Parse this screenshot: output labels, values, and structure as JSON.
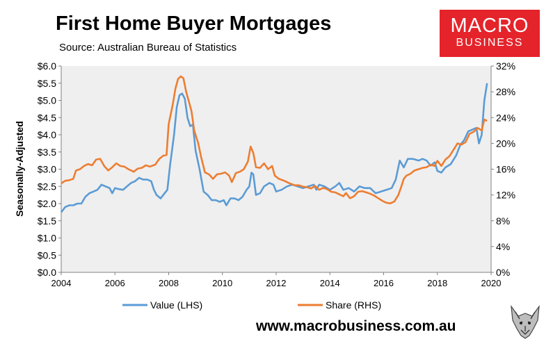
{
  "header": {
    "title": "First Home Buyer Mortgages",
    "source": "Source: Australian Bureau of Statistics"
  },
  "logo": {
    "line1": "MACRO",
    "line2": "BUSINESS",
    "bg_color": "#e5232a"
  },
  "footer": {
    "url": "www.macrobusiness.com.au"
  },
  "mascot": {
    "icon": "wolf-head-icon"
  },
  "chart_data": {
    "type": "line",
    "ylabel": "Seasonally-Adjusted",
    "x_ticks": [
      "2004",
      "2006",
      "2008",
      "2010",
      "2012",
      "2014",
      "2016",
      "2018",
      "2020"
    ],
    "y_left_ticks": [
      "$0.0",
      "$0.5",
      "$1.0",
      "$1.5",
      "$2.0",
      "$2.5",
      "$3.0",
      "$3.5",
      "$4.0",
      "$4.5",
      "$5.0",
      "$5.5",
      "$6.0"
    ],
    "y_right_ticks": [
      "0%",
      "4%",
      "8%",
      "12%",
      "16%",
      "20%",
      "24%",
      "28%",
      "32%"
    ],
    "ylim_left": [
      0,
      6
    ],
    "ylim_right": [
      0,
      32
    ],
    "xlim": [
      2004,
      2020
    ],
    "grid": false,
    "legend_position": "bottom",
    "background": "#efefef",
    "series": [
      {
        "name": "Value (LHS)",
        "axis": "left",
        "color": "#5b9bd5",
        "points": [
          [
            2004.0,
            1.75
          ],
          [
            2004.15,
            1.9
          ],
          [
            2004.3,
            1.95
          ],
          [
            2004.45,
            1.95
          ],
          [
            2004.6,
            2.0
          ],
          [
            2004.75,
            2.0
          ],
          [
            2004.9,
            2.2
          ],
          [
            2005.05,
            2.3
          ],
          [
            2005.2,
            2.35
          ],
          [
            2005.35,
            2.4
          ],
          [
            2005.5,
            2.55
          ],
          [
            2005.65,
            2.5
          ],
          [
            2005.8,
            2.45
          ],
          [
            2005.9,
            2.3
          ],
          [
            2006.0,
            2.45
          ],
          [
            2006.15,
            2.42
          ],
          [
            2006.3,
            2.4
          ],
          [
            2006.45,
            2.5
          ],
          [
            2006.6,
            2.6
          ],
          [
            2006.75,
            2.65
          ],
          [
            2006.9,
            2.75
          ],
          [
            2007.05,
            2.7
          ],
          [
            2007.2,
            2.7
          ],
          [
            2007.35,
            2.65
          ],
          [
            2007.45,
            2.4
          ],
          [
            2007.55,
            2.25
          ],
          [
            2007.7,
            2.15
          ],
          [
            2007.85,
            2.3
          ],
          [
            2007.95,
            2.4
          ],
          [
            2008.05,
            3.1
          ],
          [
            2008.2,
            4.0
          ],
          [
            2008.3,
            4.8
          ],
          [
            2008.4,
            5.15
          ],
          [
            2008.5,
            5.2
          ],
          [
            2008.6,
            5.05
          ],
          [
            2008.7,
            4.5
          ],
          [
            2008.8,
            4.25
          ],
          [
            2008.9,
            4.3
          ],
          [
            2009.0,
            3.55
          ],
          [
            2009.15,
            3.0
          ],
          [
            2009.3,
            2.35
          ],
          [
            2009.45,
            2.25
          ],
          [
            2009.6,
            2.1
          ],
          [
            2009.75,
            2.1
          ],
          [
            2009.9,
            2.05
          ],
          [
            2010.05,
            2.1
          ],
          [
            2010.15,
            1.95
          ],
          [
            2010.3,
            2.15
          ],
          [
            2010.45,
            2.15
          ],
          [
            2010.6,
            2.1
          ],
          [
            2010.75,
            2.2
          ],
          [
            2010.9,
            2.4
          ],
          [
            2011.0,
            2.5
          ],
          [
            2011.08,
            2.9
          ],
          [
            2011.15,
            2.85
          ],
          [
            2011.25,
            2.25
          ],
          [
            2011.4,
            2.3
          ],
          [
            2011.55,
            2.5
          ],
          [
            2011.75,
            2.6
          ],
          [
            2011.9,
            2.55
          ],
          [
            2012.0,
            2.35
          ],
          [
            2012.2,
            2.4
          ],
          [
            2012.4,
            2.5
          ],
          [
            2012.6,
            2.55
          ],
          [
            2012.8,
            2.5
          ],
          [
            2013.0,
            2.45
          ],
          [
            2013.2,
            2.5
          ],
          [
            2013.4,
            2.55
          ],
          [
            2013.5,
            2.4
          ],
          [
            2013.6,
            2.55
          ],
          [
            2013.8,
            2.5
          ],
          [
            2014.0,
            2.4
          ],
          [
            2014.2,
            2.5
          ],
          [
            2014.35,
            2.6
          ],
          [
            2014.5,
            2.4
          ],
          [
            2014.7,
            2.45
          ],
          [
            2014.9,
            2.35
          ],
          [
            2015.1,
            2.5
          ],
          [
            2015.3,
            2.45
          ],
          [
            2015.5,
            2.45
          ],
          [
            2015.7,
            2.3
          ],
          [
            2015.9,
            2.35
          ],
          [
            2016.1,
            2.4
          ],
          [
            2016.3,
            2.45
          ],
          [
            2016.45,
            2.7
          ],
          [
            2016.6,
            3.25
          ],
          [
            2016.75,
            3.05
          ],
          [
            2016.9,
            3.3
          ],
          [
            2017.1,
            3.3
          ],
          [
            2017.3,
            3.25
          ],
          [
            2017.45,
            3.3
          ],
          [
            2017.6,
            3.25
          ],
          [
            2017.75,
            3.1
          ],
          [
            2017.9,
            3.2
          ],
          [
            2018.0,
            2.95
          ],
          [
            2018.15,
            2.9
          ],
          [
            2018.3,
            3.05
          ],
          [
            2018.5,
            3.15
          ],
          [
            2018.7,
            3.4
          ],
          [
            2018.85,
            3.7
          ],
          [
            2019.0,
            3.85
          ],
          [
            2019.15,
            4.1
          ],
          [
            2019.3,
            4.15
          ],
          [
            2019.45,
            4.2
          ],
          [
            2019.55,
            3.75
          ],
          [
            2019.65,
            4.0
          ],
          [
            2019.75,
            5.0
          ],
          [
            2019.85,
            5.5
          ]
        ]
      },
      {
        "name": "Share (RHS)",
        "axis": "right",
        "color": "#ed7d31",
        "points": [
          [
            2004.0,
            13.8
          ],
          [
            2004.15,
            14.2
          ],
          [
            2004.3,
            14.3
          ],
          [
            2004.45,
            14.5
          ],
          [
            2004.55,
            15.8
          ],
          [
            2004.7,
            16.0
          ],
          [
            2004.85,
            16.5
          ],
          [
            2005.0,
            16.8
          ],
          [
            2005.15,
            16.6
          ],
          [
            2005.3,
            17.5
          ],
          [
            2005.45,
            17.6
          ],
          [
            2005.6,
            16.5
          ],
          [
            2005.75,
            15.8
          ],
          [
            2005.9,
            16.3
          ],
          [
            2006.05,
            16.9
          ],
          [
            2006.2,
            16.5
          ],
          [
            2006.35,
            16.4
          ],
          [
            2006.5,
            16.0
          ],
          [
            2006.7,
            15.6
          ],
          [
            2006.85,
            16.1
          ],
          [
            2007.0,
            16.2
          ],
          [
            2007.15,
            16.6
          ],
          [
            2007.3,
            16.4
          ],
          [
            2007.5,
            16.7
          ],
          [
            2007.65,
            17.6
          ],
          [
            2007.8,
            18.1
          ],
          [
            2007.92,
            18.2
          ],
          [
            2008.0,
            23.0
          ],
          [
            2008.15,
            26.0
          ],
          [
            2008.25,
            28.5
          ],
          [
            2008.35,
            30.0
          ],
          [
            2008.45,
            30.4
          ],
          [
            2008.55,
            30.1
          ],
          [
            2008.65,
            28.0
          ],
          [
            2008.75,
            26.5
          ],
          [
            2008.85,
            25.0
          ],
          [
            2008.95,
            22.0
          ],
          [
            2009.1,
            20.0
          ],
          [
            2009.2,
            18.0
          ],
          [
            2009.35,
            15.5
          ],
          [
            2009.5,
            15.2
          ],
          [
            2009.65,
            14.5
          ],
          [
            2009.8,
            15.2
          ],
          [
            2009.95,
            15.3
          ],
          [
            2010.1,
            15.5
          ],
          [
            2010.25,
            15.0
          ],
          [
            2010.35,
            14.0
          ],
          [
            2010.5,
            15.4
          ],
          [
            2010.65,
            15.6
          ],
          [
            2010.8,
            16.0
          ],
          [
            2010.95,
            17.2
          ],
          [
            2011.05,
            19.5
          ],
          [
            2011.15,
            18.5
          ],
          [
            2011.25,
            16.3
          ],
          [
            2011.4,
            16.2
          ],
          [
            2011.55,
            16.9
          ],
          [
            2011.7,
            16.0
          ],
          [
            2011.85,
            16.5
          ],
          [
            2011.95,
            15.0
          ],
          [
            2012.1,
            14.5
          ],
          [
            2012.3,
            14.2
          ],
          [
            2012.5,
            13.8
          ],
          [
            2012.7,
            13.5
          ],
          [
            2012.85,
            13.5
          ],
          [
            2013.0,
            13.3
          ],
          [
            2013.15,
            13.2
          ],
          [
            2013.3,
            13.0
          ],
          [
            2013.45,
            13.4
          ],
          [
            2013.6,
            12.8
          ],
          [
            2013.75,
            13.1
          ],
          [
            2013.9,
            12.9
          ],
          [
            2014.05,
            12.5
          ],
          [
            2014.2,
            12.4
          ],
          [
            2014.35,
            12.1
          ],
          [
            2014.5,
            11.8
          ],
          [
            2014.6,
            12.3
          ],
          [
            2014.75,
            11.5
          ],
          [
            2014.9,
            11.8
          ],
          [
            2015.05,
            12.5
          ],
          [
            2015.2,
            12.6
          ],
          [
            2015.35,
            12.4
          ],
          [
            2015.5,
            12.2
          ],
          [
            2015.65,
            11.9
          ],
          [
            2015.8,
            11.5
          ],
          [
            2015.95,
            11.1
          ],
          [
            2016.1,
            10.8
          ],
          [
            2016.25,
            10.7
          ],
          [
            2016.4,
            11.0
          ],
          [
            2016.55,
            12.0
          ],
          [
            2016.65,
            13.2
          ],
          [
            2016.75,
            14.5
          ],
          [
            2016.85,
            15.0
          ],
          [
            2017.0,
            15.3
          ],
          [
            2017.15,
            15.8
          ],
          [
            2017.3,
            16.0
          ],
          [
            2017.45,
            16.2
          ],
          [
            2017.6,
            16.3
          ],
          [
            2017.75,
            16.7
          ],
          [
            2017.9,
            16.5
          ],
          [
            2018.0,
            17.3
          ],
          [
            2018.15,
            16.5
          ],
          [
            2018.3,
            17.5
          ],
          [
            2018.45,
            18.0
          ],
          [
            2018.6,
            19.0
          ],
          [
            2018.75,
            20.0
          ],
          [
            2018.9,
            19.8
          ],
          [
            2019.05,
            20.2
          ],
          [
            2019.2,
            21.5
          ],
          [
            2019.35,
            21.8
          ],
          [
            2019.5,
            22.4
          ],
          [
            2019.65,
            22.0
          ],
          [
            2019.75,
            23.7
          ],
          [
            2019.85,
            23.5
          ]
        ]
      }
    ]
  }
}
